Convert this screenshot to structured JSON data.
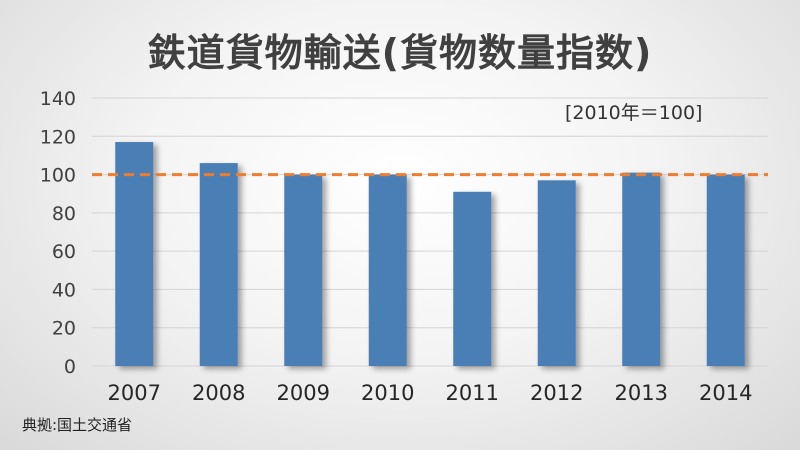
{
  "title": "鉄道貨物輸送(貨物数量指数)",
  "unit_note": "[2010年＝100]",
  "source": "典拠:国土交通省",
  "colors": {
    "bar": "#4a7fb5",
    "reference_line": "#ed7d31",
    "grid": "#d4d4d4",
    "text": "#404040"
  },
  "chart_data": {
    "type": "bar",
    "title": "鉄道貨物輸送(貨物数量指数)",
    "categories": [
      "2007",
      "2008",
      "2009",
      "2010",
      "2011",
      "2012",
      "2013",
      "2014"
    ],
    "values": [
      117,
      106,
      100,
      100,
      91,
      97,
      101,
      100
    ],
    "ylim": [
      0,
      140
    ],
    "yticks": [
      0,
      20,
      40,
      60,
      80,
      100,
      120,
      140
    ],
    "reference_line": {
      "value": 100,
      "style": "dashed"
    },
    "grid": true,
    "legend": "none",
    "annotation": "[2010年＝100]"
  }
}
